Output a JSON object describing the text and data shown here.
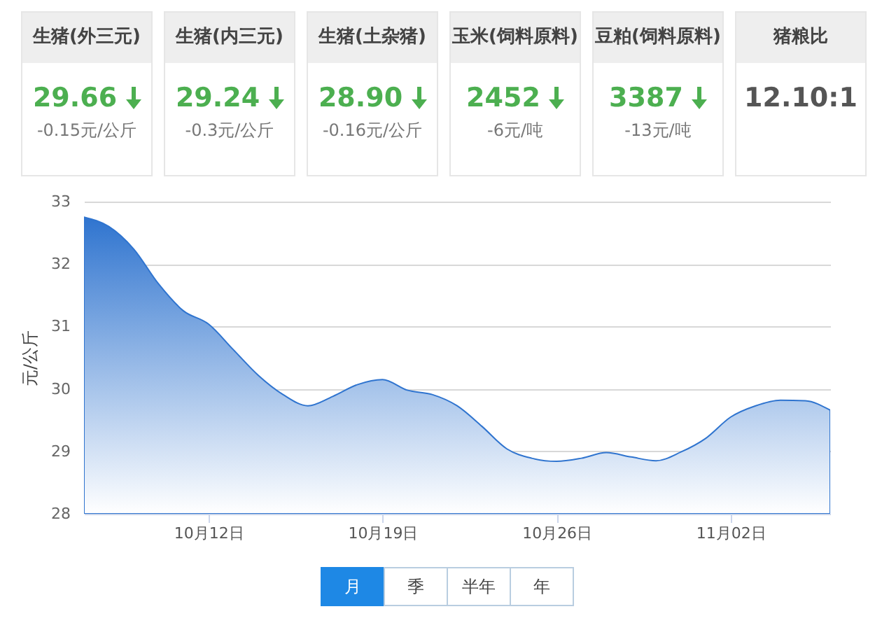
{
  "chart_data": [
    {
      "type": "other",
      "categories": [
        "生猪(外三元)",
        "生猪(内三元)",
        "生猪(土杂猪)",
        "玉米(饲料原料)",
        "豆粕(饲料原料)",
        "猪粮比"
      ],
      "value_labels": [
        "29.66",
        "29.24",
        "28.90",
        "2452",
        "3387",
        "12.10:1"
      ],
      "annotations": [
        "-0.15元/公斤",
        "-0.3元/公斤",
        "-0.16元/公斤",
        "-6元/吨",
        "-13元/吨"
      ]
    },
    {
      "type": "area",
      "ylabel": "元/公斤",
      "annotations": [
        "月",
        "季",
        "半年",
        "年"
      ],
      "x": [
        "--10-07",
        "--10-08",
        "--10-09",
        "--10-10",
        "--10-11",
        "--10-12",
        "--10-13",
        "--10-14",
        "--10-15",
        "--10-16",
        "--10-17",
        "--10-18",
        "--10-19",
        "--10-20",
        "--10-21",
        "--10-22",
        "--10-23",
        "--10-24",
        "--10-25",
        "--10-26",
        "--10-27",
        "--10-28",
        "--10-29",
        "--10-30",
        "--10-31",
        "--11-01",
        "--11-02",
        "--11-03",
        "--11-04",
        "--11-05",
        "--11-06"
      ],
      "series": [
        {
          "color": "#2f74cf",
          "values": [
            32.75,
            32.6,
            32.24,
            31.68,
            31.25,
            31.04,
            30.63,
            30.22,
            29.91,
            29.73,
            29.88,
            30.07,
            30.15,
            29.98,
            29.91,
            29.73,
            29.4,
            29.04,
            28.89,
            28.84,
            28.89,
            28.98,
            28.91,
            28.85,
            28.99,
            29.21,
            29.55,
            29.73,
            29.82,
            29.81,
            29.66
          ]
        }
      ],
      "xlim": [
        "--10-07",
        "--11-06"
      ],
      "xticks": [
        {
          "value": "--10-12",
          "label": "10月12日"
        },
        {
          "value": "--10-19",
          "label": "10月19日"
        },
        {
          "value": "--10-26",
          "label": "10月26日"
        },
        {
          "value": "--11-02",
          "label": "11月02日"
        }
      ],
      "ylim": [
        28,
        33
      ],
      "yticks": [
        28,
        29,
        30,
        31,
        32,
        33
      ],
      "grid": "y",
      "marker": "none"
    }
  ]
}
